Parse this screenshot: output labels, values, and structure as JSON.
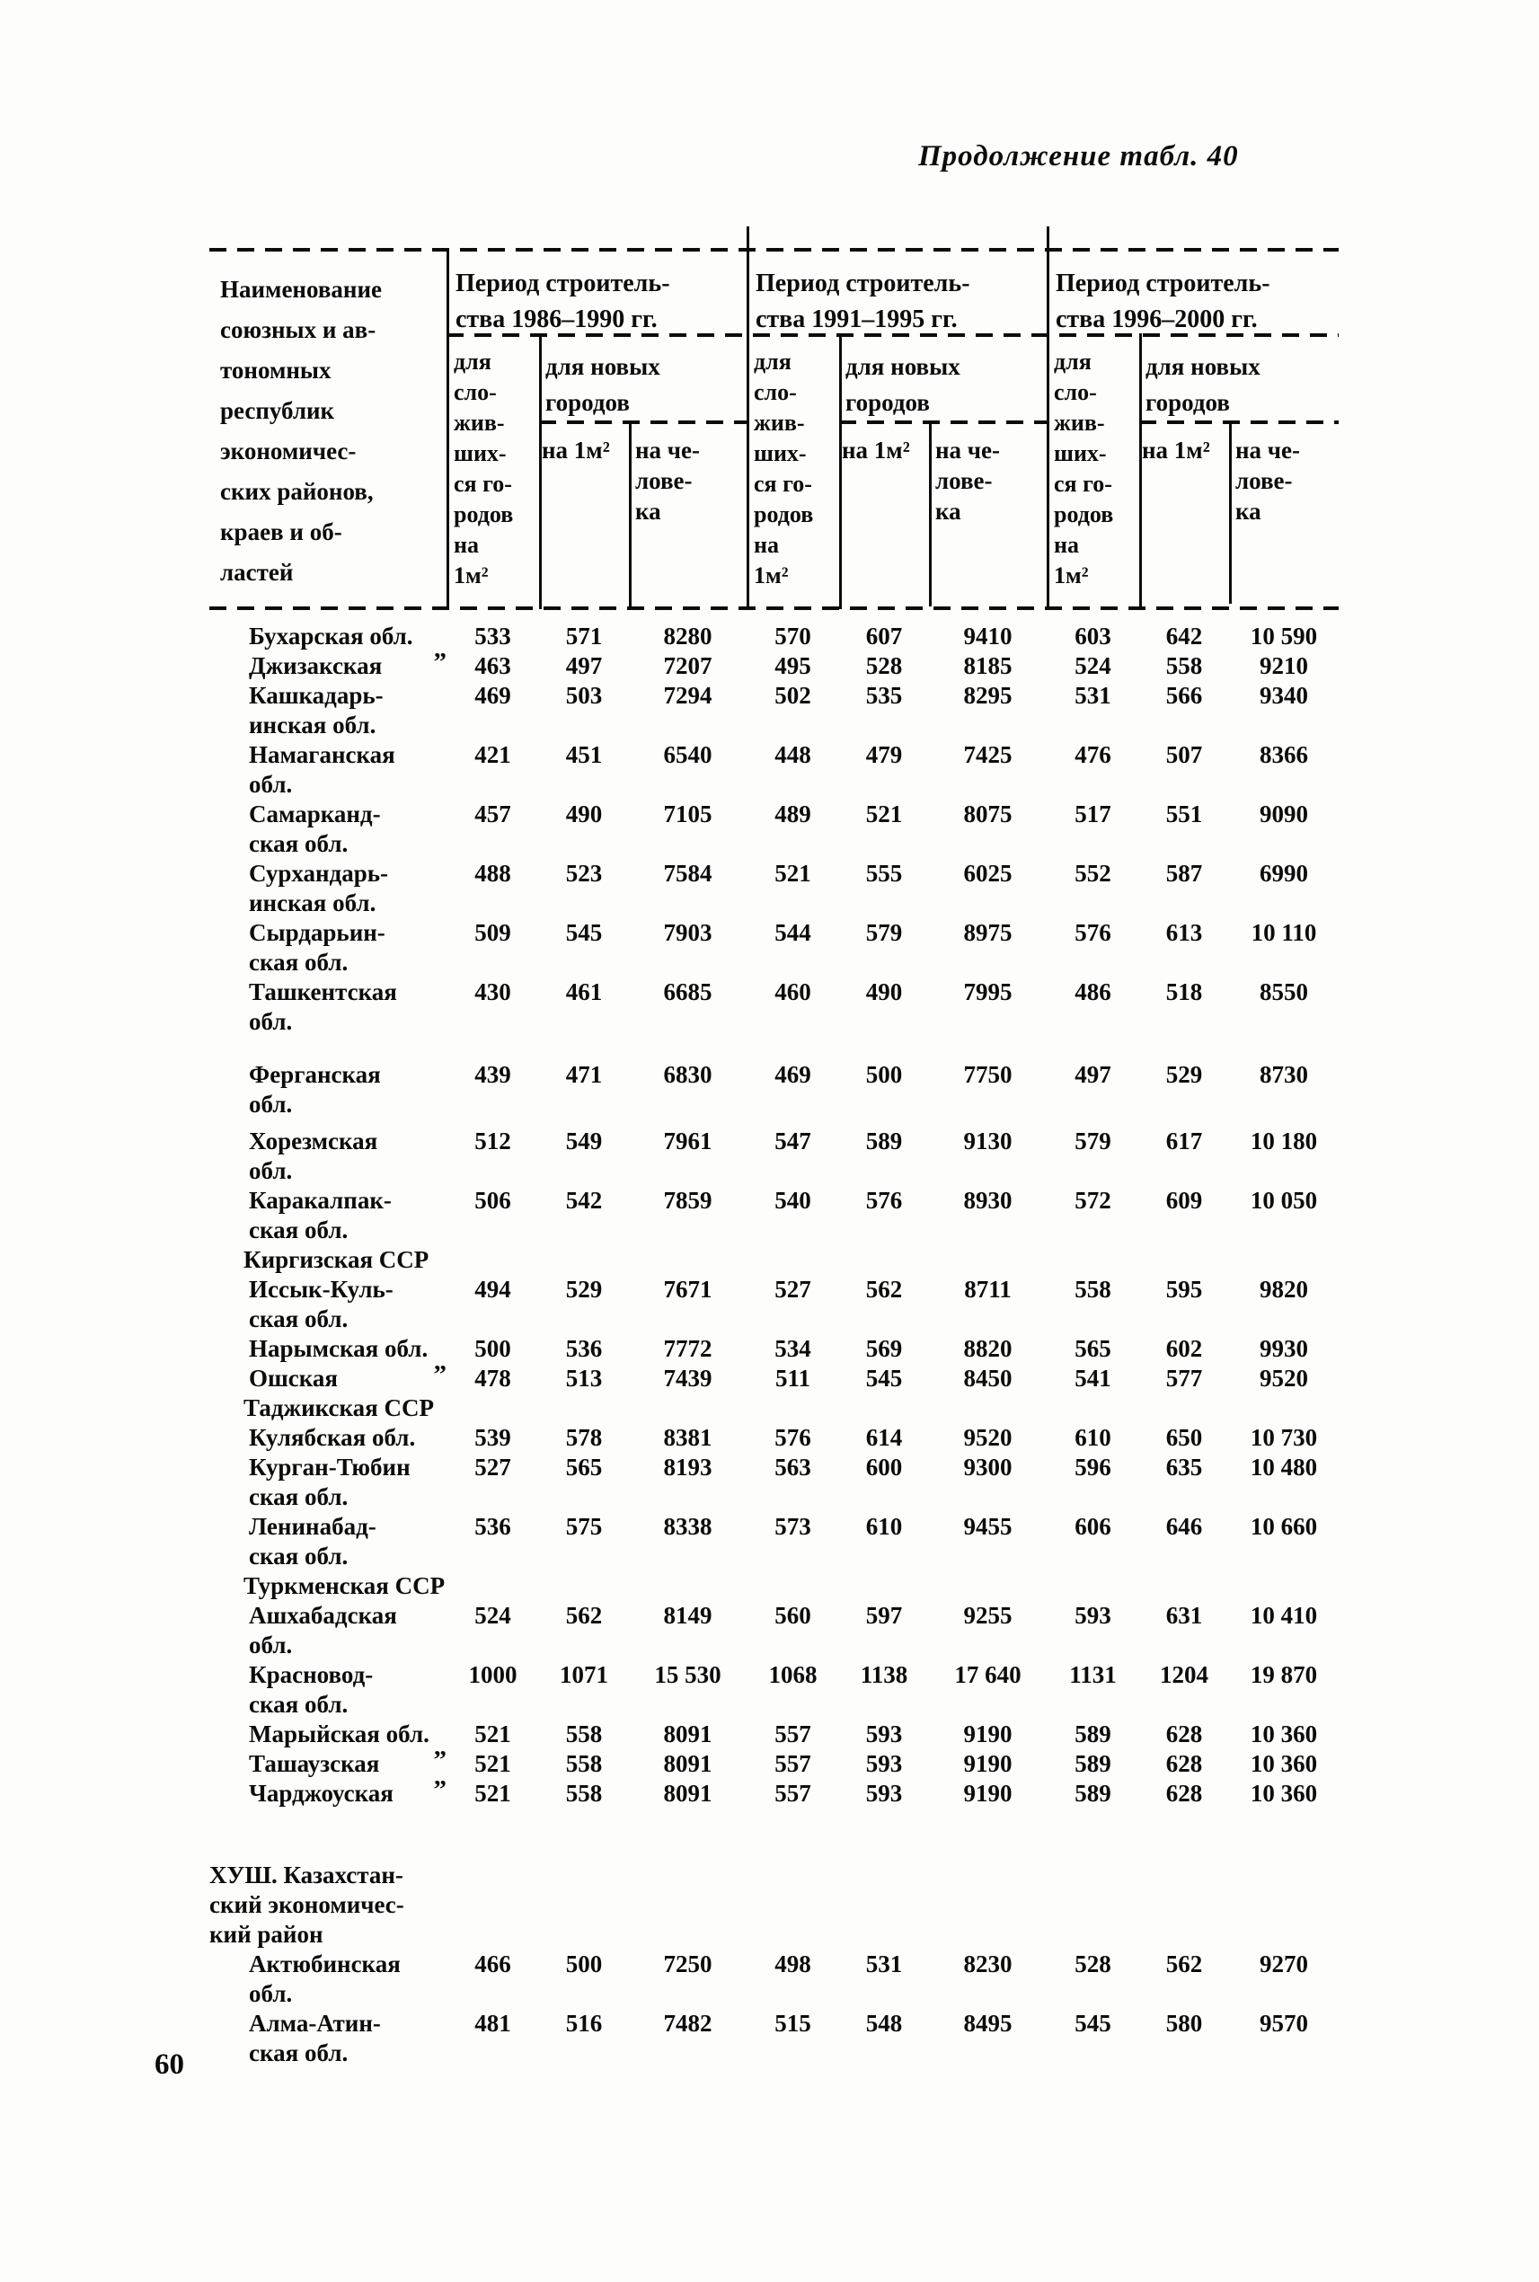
{
  "page": {
    "title": "Продолжение табл. 40",
    "page_number": "60"
  },
  "table": {
    "header": {
      "name_column": "Наименование\nсоюзных и ав-\nтономных\nреспублик\nэкономичес-\nских районов,\nкраев и об-\nластей",
      "groups": [
        {
          "period": "Период строитель-\nства 1986–1990 гг.",
          "existing_cities": "для\nсло-\nжив-\nших-\nся го-\nродов\nна\n1м²",
          "new_cities": "для новых\nгородов",
          "per_m2": "на 1м²",
          "per_person": "на че-\nлове-\nка"
        },
        {
          "period": "Период строитель-\nства 1991–1995 гг.",
          "existing_cities": "для\nсло-\nжив-\nших-\nся го-\nродов\nна\n1м²",
          "new_cities": "для новых\nгородов",
          "per_m2": "на 1м²",
          "per_person": "на че-\nлове-\nка"
        },
        {
          "period": "Период строитель-\nства  1996–2000  гг.",
          "existing_cities": "для\nсло-\nжив-\nших-\nся го-\nродов\nна\n1м²",
          "new_cities": "для новых\nгородов",
          "per_m2": "на 1м²",
          "per_person": "на  че-\nлове-\nка"
        }
      ]
    },
    "rows": [
      {
        "name": "Бухарская обл.",
        "values": [
          "533",
          "571",
          "8280",
          "570",
          "607",
          "9410",
          "603",
          "642",
          "10 590"
        ]
      },
      {
        "name": "Джизакская",
        "ditto": "”",
        "values": [
          "463",
          "497",
          "7207",
          "495",
          "528",
          "8185",
          "524",
          "558",
          "9210"
        ]
      },
      {
        "name": "Кашкадарь-\nинская обл.",
        "values": [
          "469",
          "503",
          "7294",
          "502",
          "535",
          "8295",
          "531",
          "566",
          "9340"
        ]
      },
      {
        "name": "Намаганская\nобл.",
        "values": [
          "421",
          "451",
          "6540",
          "448",
          "479",
          "7425",
          "476",
          "507",
          "8366"
        ]
      },
      {
        "name": "Самарканд-\nская обл.",
        "values": [
          "457",
          "490",
          "7105",
          "489",
          "521",
          "8075",
          "517",
          "551",
          "9090"
        ]
      },
      {
        "name": "Сурхандарь-\nинская обл.",
        "values": [
          "488",
          "523",
          "7584",
          "521",
          "555",
          "6025",
          "552",
          "587",
          "6990"
        ]
      },
      {
        "name": "Сырдарьин-\nская обл.",
        "values": [
          "509",
          "545",
          "7903",
          "544",
          "579",
          "8975",
          "576",
          "613",
          "10 110"
        ]
      },
      {
        "name": "Ташкентская\nобл.",
        "values": [
          "430",
          "461",
          "6685",
          "460",
          "490",
          "7995",
          "486",
          "518",
          "8550"
        ]
      },
      {
        "name": "Ферганская\nобл.",
        "gap": 26,
        "values": [
          "439",
          "471",
          "6830",
          "469",
          "500",
          "7750",
          "497",
          "529",
          "8730"
        ]
      },
      {
        "name": "Хорезмская\nобл.",
        "gap": 8,
        "values": [
          "512",
          "549",
          "7961",
          "547",
          "589",
          "9130",
          "579",
          "617",
          "10 180"
        ]
      },
      {
        "name": "Каракалпак-\nская обл.",
        "values": [
          "506",
          "542",
          "7859",
          "540",
          "576",
          "8930",
          "572",
          "609",
          "10 050"
        ]
      },
      {
        "type": "section",
        "name": "Киргизская ССР"
      },
      {
        "name": "Иссык-Куль-\nская обл.",
        "values": [
          "494",
          "529",
          "7671",
          "527",
          "562",
          "8711",
          "558",
          "595",
          "9820"
        ]
      },
      {
        "name": "Нарымская обл.",
        "values": [
          "500",
          "536",
          "7772",
          "534",
          "569",
          "8820",
          "565",
          "602",
          "9930"
        ]
      },
      {
        "name": "Ошская",
        "ditto": "”",
        "values": [
          "478",
          "513",
          "7439",
          "511",
          "545",
          "8450",
          "541",
          "577",
          "9520"
        ]
      },
      {
        "type": "section",
        "name": "Таджикская ССР"
      },
      {
        "name": "Кулябская обл.",
        "values": [
          "539",
          "578",
          "8381",
          "576",
          "614",
          "9520",
          "610",
          "650",
          "10 730"
        ]
      },
      {
        "name": "Курган-Тюбин\nская обл.",
        "values": [
          "527",
          "565",
          "8193",
          "563",
          "600",
          "9300",
          "596",
          "635",
          "10 480"
        ]
      },
      {
        "name": "Ленинабад-\nская обл.",
        "values": [
          "536",
          "575",
          "8338",
          "573",
          "610",
          "9455",
          "606",
          "646",
          "10 660"
        ]
      },
      {
        "type": "section",
        "name": "Туркменская ССР"
      },
      {
        "name": "Ашхабадская\nобл.",
        "values": [
          "524",
          "562",
          "8149",
          "560",
          "597",
          "9255",
          "593",
          "631",
          "10 410"
        ]
      },
      {
        "name": "Красновод-\nская обл.",
        "values": [
          "1000",
          "1071",
          "15 530",
          "1068",
          "1138",
          "17 640",
          "1131",
          "1204",
          "19 870"
        ]
      },
      {
        "name": "Марыйская обл.",
        "values": [
          "521",
          "558",
          "8091",
          "557",
          "593",
          "9190",
          "589",
          "628",
          "10 360"
        ]
      },
      {
        "name": "Ташаузская",
        "ditto": "”",
        "values": [
          "521",
          "558",
          "8091",
          "557",
          "593",
          "9190",
          "589",
          "628",
          "10 360"
        ]
      },
      {
        "name": "Чарджоуская",
        "ditto": "”",
        "values": [
          "521",
          "558",
          "8091",
          "557",
          "593",
          "9190",
          "589",
          "628",
          "10 360"
        ]
      },
      {
        "type": "section",
        "flush": true,
        "gap": 58,
        "name": "ХУШ. Казахстан-\nский экономичес-\nкий район"
      },
      {
        "name": "Актюбинская\nобл.",
        "values": [
          "466",
          "500",
          "7250",
          "498",
          "531",
          "8230",
          "528",
          "562",
          "9270"
        ]
      },
      {
        "name": "Алма-Атин-\nская обл.",
        "values": [
          "481",
          "516",
          "7482",
          "515",
          "548",
          "8495",
          "545",
          "580",
          "9570"
        ]
      }
    ]
  }
}
